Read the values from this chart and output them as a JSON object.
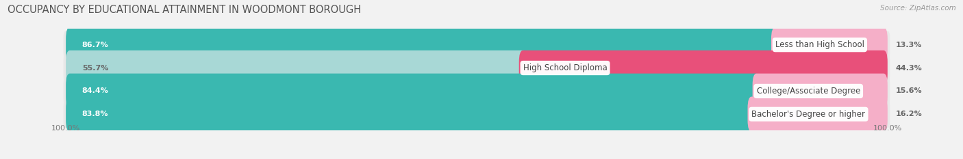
{
  "title": "OCCUPANCY BY EDUCATIONAL ATTAINMENT IN WOODMONT BOROUGH",
  "source": "Source: ZipAtlas.com",
  "categories": [
    "Less than High School",
    "High School Diploma",
    "College/Associate Degree",
    "Bachelor's Degree or higher"
  ],
  "owner_pct": [
    86.7,
    55.7,
    84.4,
    83.8
  ],
  "renter_pct": [
    13.3,
    44.3,
    15.6,
    16.2
  ],
  "owner_colors": [
    "#3ab8b0",
    "#a8d8d6",
    "#3ab8b0",
    "#3ab8b0"
  ],
  "renter_colors": [
    "#f5afc8",
    "#e8507a",
    "#f5afc8",
    "#f5afc8"
  ],
  "bg_row": "#e8e8e8",
  "bg_fig": "#f2f2f2",
  "title_color": "#555555",
  "label_color_white": "#ffffff",
  "label_color_dark": "#666666",
  "title_fontsize": 10.5,
  "label_fontsize": 8.0,
  "cat_fontsize": 8.5,
  "tick_fontsize": 8.0,
  "source_fontsize": 7.5
}
